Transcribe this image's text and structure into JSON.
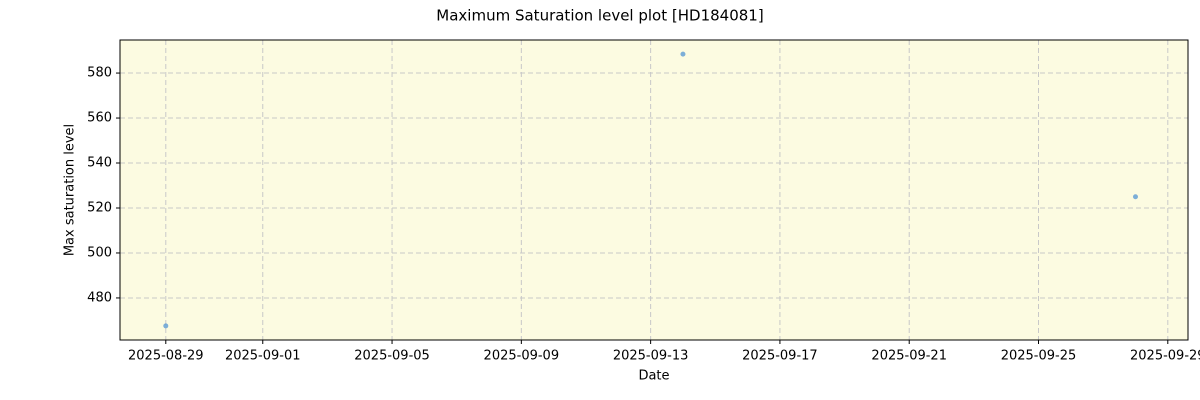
{
  "chart_data": {
    "type": "scatter",
    "title": "Maximum Saturation level plot [HD184081]",
    "x_label": "Date",
    "y_label": "Max saturation level",
    "x": [
      "2025-08-29",
      "2025-09-14",
      "2025-09-28"
    ],
    "values": [
      467.6,
      588.4,
      525
    ],
    "color": "#5b9bd5",
    "background": "#fcfbe1",
    "grid": true,
    "xlim": [
      "2025-08-27T14:00",
      "2025-09-29T15:00"
    ],
    "xticks": [
      "2025-08-29",
      "2025-09-01",
      "2025-09-05",
      "2025-09-09",
      "2025-09-13",
      "2025-09-17",
      "2025-09-21",
      "2025-09-25",
      "2025-09-29"
    ],
    "ylim": [
      461.3,
      594.7
    ],
    "yticks": [
      480,
      500,
      520,
      540,
      560,
      580
    ]
  }
}
